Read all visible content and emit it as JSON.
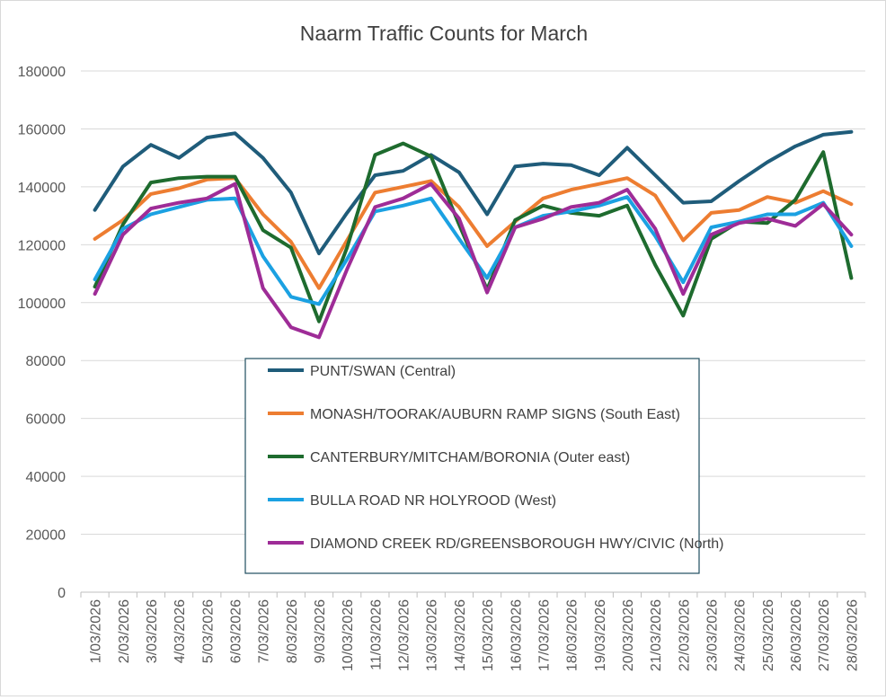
{
  "chart_data": {
    "type": "line",
    "title": "Naarm Traffic Counts for March",
    "xlabel": "",
    "ylabel": "",
    "ylim": [
      0,
      180000
    ],
    "yticks": [
      0,
      20000,
      40000,
      60000,
      80000,
      100000,
      120000,
      140000,
      160000,
      180000
    ],
    "grid": true,
    "legend_position": "center",
    "categories": [
      "1/03/2026",
      "2/03/2026",
      "3/03/2026",
      "4/03/2026",
      "5/03/2026",
      "6/03/2026",
      "7/03/2026",
      "8/03/2026",
      "9/03/2026",
      "10/03/2026",
      "11/03/2026",
      "12/03/2026",
      "13/03/2026",
      "14/03/2026",
      "15/03/2026",
      "16/03/2026",
      "17/03/2026",
      "18/03/2026",
      "19/03/2026",
      "20/03/2026",
      "21/03/2026",
      "22/03/2026",
      "23/03/2026",
      "24/03/2026",
      "25/03/2026",
      "26/03/2026",
      "27/03/2026",
      "28/03/2026"
    ],
    "series": [
      {
        "name": "PUNT/SWAN (Central)",
        "color": "#1f5c7a",
        "values": [
          132000,
          147000,
          154500,
          150000,
          157000,
          158500,
          150000,
          138000,
          117000,
          131000,
          144000,
          145500,
          151000,
          145000,
          130500,
          147000,
          148000,
          147500,
          144000,
          153500,
          144000,
          134500,
          135000,
          142000,
          148500,
          154000,
          158000,
          159000
        ]
      },
      {
        "name": "MONASH/TOORAK/AUBURN RAMP SIGNS (South East)",
        "color": "#ed7d31",
        "values": [
          122000,
          128500,
          137500,
          139500,
          142500,
          143000,
          130500,
          121000,
          105000,
          121500,
          138000,
          140000,
          142000,
          133000,
          119500,
          128000,
          136000,
          139000,
          141000,
          143000,
          137000,
          121500,
          131000,
          132000,
          136500,
          134500,
          138500,
          134000
        ]
      },
      {
        "name": "CANTERBURY/MITCHAM/BORONIA (Outer east)",
        "color": "#1e6b2e",
        "values": [
          105500,
          127000,
          141500,
          143000,
          143500,
          143500,
          125000,
          119000,
          93500,
          119000,
          151000,
          155000,
          150500,
          127000,
          104500,
          128500,
          133500,
          131000,
          130000,
          133500,
          113000,
          95500,
          122000,
          128000,
          127500,
          135500,
          152000,
          108500
        ]
      },
      {
        "name": "BULLA ROAD NR HOLYROOD (West)",
        "color": "#1ba1e2",
        "values": [
          108000,
          125500,
          130500,
          133000,
          135500,
          136000,
          116000,
          102000,
          99500,
          115000,
          131500,
          133500,
          136000,
          122000,
          108500,
          126000,
          130000,
          131500,
          133500,
          136500,
          123000,
          107000,
          126000,
          128000,
          130500,
          130500,
          134500,
          119500
        ]
      },
      {
        "name": "DIAMOND CREEK RD/GREENSBOROUGH HWY/CIVIC (North)",
        "color": "#9e2c97",
        "values": [
          103000,
          123500,
          132500,
          134500,
          136000,
          141000,
          105000,
          91500,
          88000,
          111500,
          133000,
          136000,
          141000,
          129000,
          103500,
          126000,
          129000,
          133000,
          134500,
          139000,
          125500,
          103000,
          123500,
          127500,
          129000,
          126500,
          134000,
          123500
        ]
      }
    ]
  }
}
